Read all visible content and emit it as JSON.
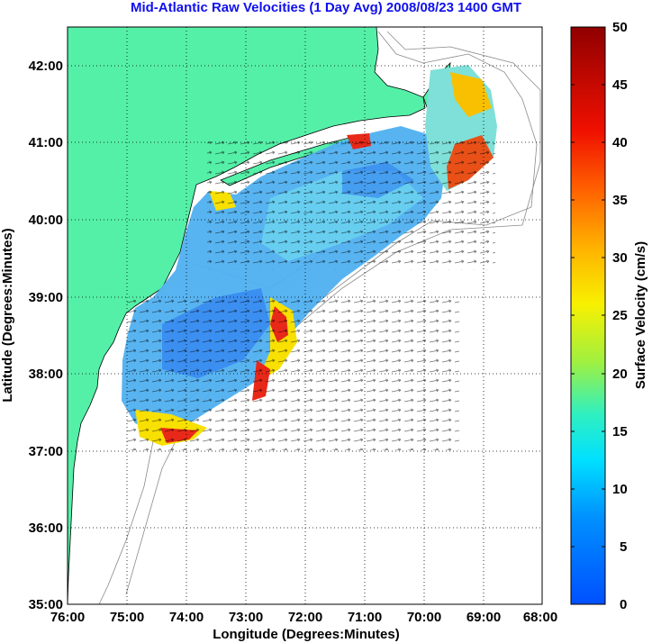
{
  "title": "Mid-Atlantic Raw Velocities (1 Day Avg) 2008/08/23 1400 GMT",
  "x_axis": {
    "label": "Longitude (Degrees:Minutes)",
    "ticks": [
      "76:00",
      "75:00",
      "74:00",
      "73:00",
      "72:00",
      "71:00",
      "70:00",
      "69:00",
      "68:00"
    ]
  },
  "y_axis": {
    "label": "Latitude (Degrees:Minutes)",
    "ticks": [
      "42:00",
      "41:00",
      "40:00",
      "39:00",
      "38:00",
      "37:00",
      "36:00",
      "35:00"
    ]
  },
  "colorbar": {
    "label": "Surface Velocity (cm/s)",
    "ticks": [
      "50",
      "45",
      "40",
      "35",
      "30",
      "25",
      "20",
      "15",
      "10",
      "5",
      "0"
    ]
  },
  "colors": {
    "land": "#55f0a8",
    "title": "#1010ee",
    "ocean_low": "#2a8cff",
    "ocean_mid": "#55c8ee",
    "hot": "#e82818"
  }
}
